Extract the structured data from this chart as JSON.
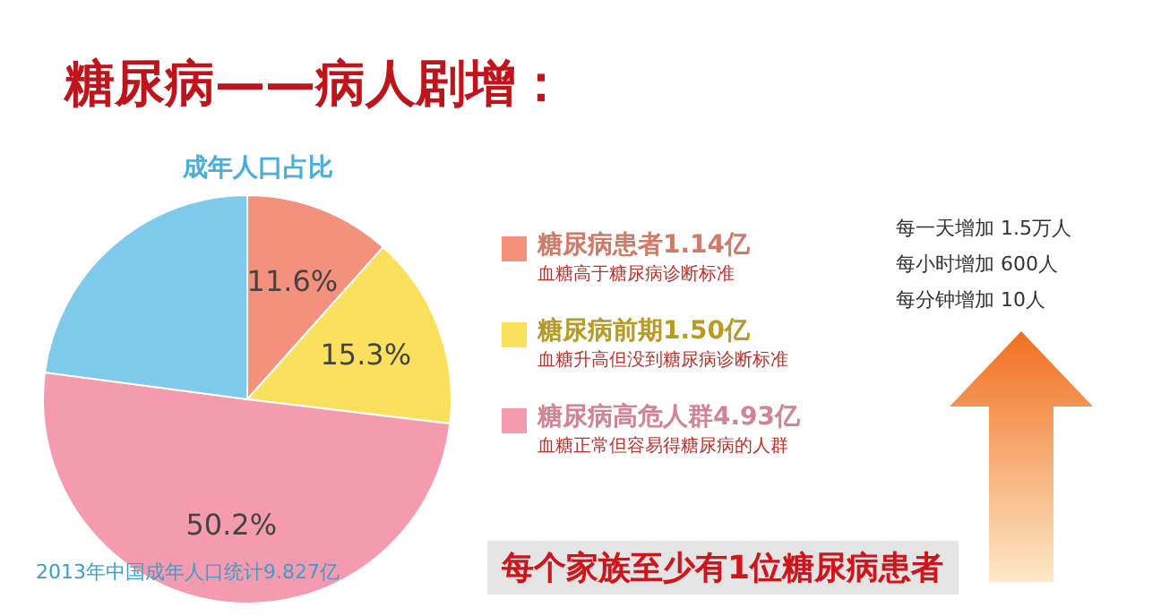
{
  "chart_data": {
    "type": "pie",
    "title": "糖尿病——病人剧增：",
    "subtitle": "成年人口占比",
    "categories": [
      "糖尿病患者1.14亿",
      "糖尿病前期1.50亿",
      "糖尿病高危人群4.93亿",
      null
    ],
    "values": [
      11.6,
      15.3,
      50.2,
      22.9
    ],
    "colors": [
      "#f4917c",
      "#fbe05e",
      "#f59bb0",
      "#7fc9ea"
    ],
    "value_labels": [
      "11.6%",
      "15.3%",
      "50.2%",
      null
    ],
    "legend": "right",
    "annotations": [
      "血糖高于糖尿病诊断标准",
      "血糖升高但没到糖尿病诊断标准",
      "血糖正常但容易得糖尿病的人群",
      "每一天增加 1.5万人",
      "每小时增加 600人",
      "每分钟增加 10人",
      "2013年中国成年人口统计9.827亿",
      "每个家族至少有1位糖尿病患者"
    ]
  }
}
